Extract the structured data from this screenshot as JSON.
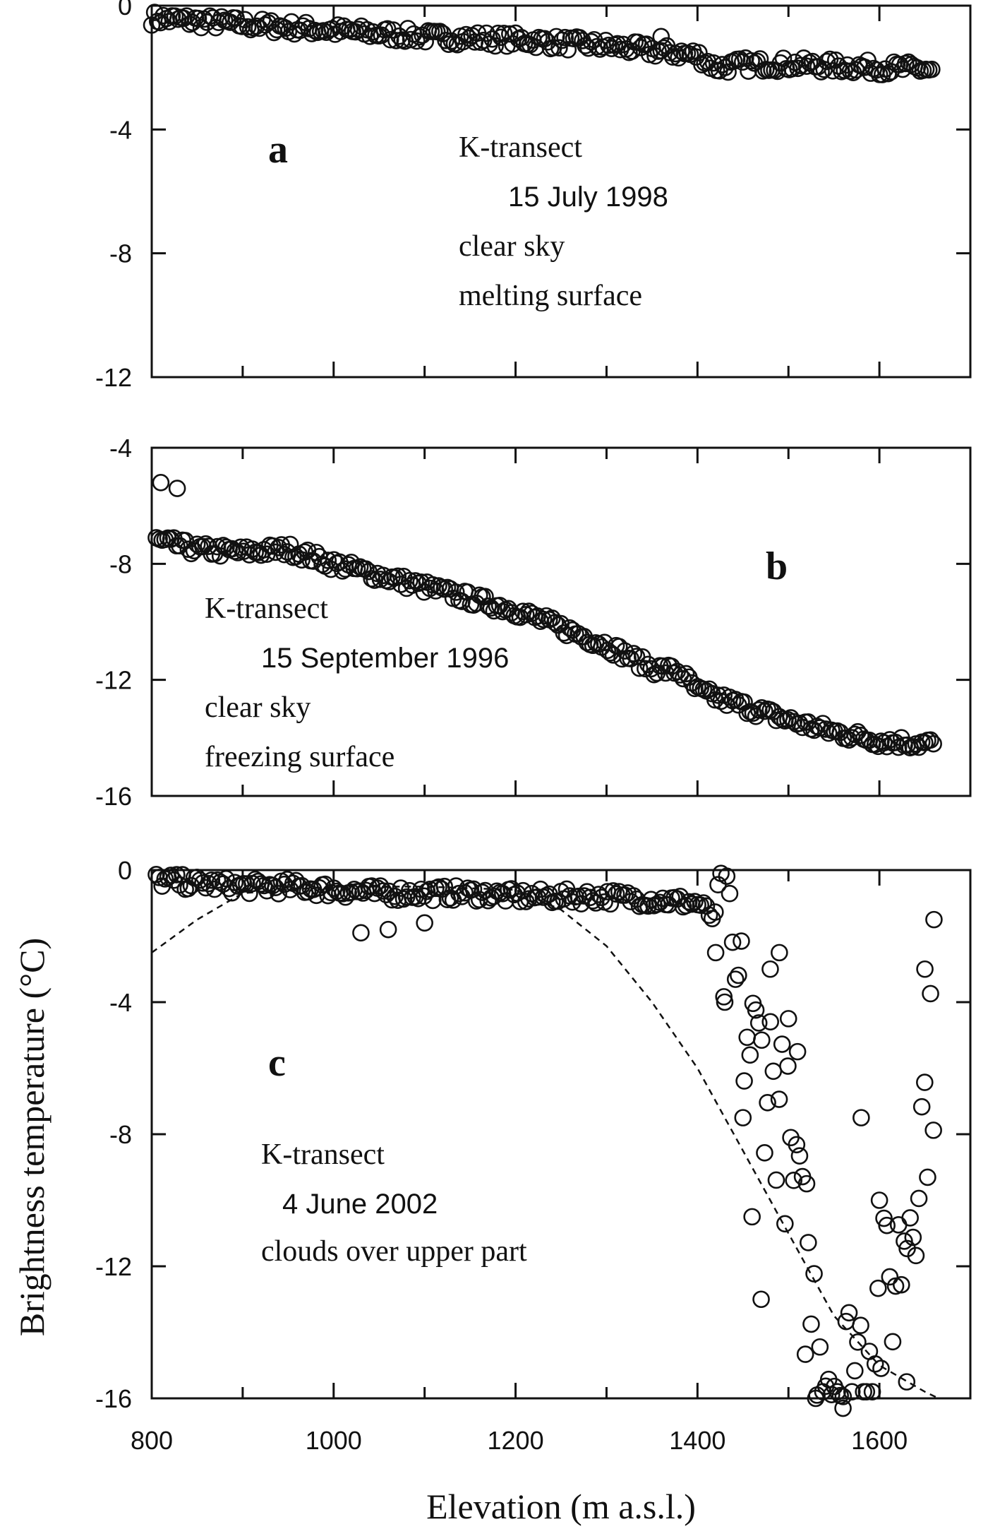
{
  "chart_data": [
    {
      "type": "scatter",
      "panel": "a",
      "annotation": [
        "K-transect",
        "15 July 1998",
        "clear sky",
        "melting surface"
      ],
      "xlim": [
        800,
        1700
      ],
      "ylim": [
        -12,
        0
      ],
      "yticks": [
        "0",
        "-4",
        "-8",
        "-12"
      ],
      "ytick_values": [
        0,
        -4,
        -8,
        -12
      ],
      "series": [
        {
          "x": [
            800,
            850,
            900,
            950,
            1000,
            1050,
            1100,
            1150,
            1200,
            1250,
            1300,
            1350,
            1400,
            1420,
            1450,
            1500,
            1550,
            1600,
            1650,
            1660
          ],
          "y": [
            -0.4,
            -0.5,
            -0.6,
            -0.7,
            -0.8,
            -0.9,
            -1.0,
            -1.05,
            -1.1,
            -1.2,
            -1.3,
            -1.45,
            -1.6,
            -2.0,
            -1.9,
            -1.9,
            -1.95,
            -2.0,
            -2.05,
            -2.1
          ]
        }
      ],
      "outliers": [
        {
          "x": 1360,
          "y": -1.0
        }
      ]
    },
    {
      "type": "scatter",
      "panel": "b",
      "annotation": [
        "K-transect",
        "15 September 1996",
        "clear sky",
        "freezing surface"
      ],
      "xlim": [
        800,
        1700
      ],
      "ylim": [
        -16,
        -4
      ],
      "yticks": [
        "-4",
        "-8",
        "-12",
        "-16"
      ],
      "ytick_values": [
        -4,
        -8,
        -12,
        -16
      ],
      "series": [
        {
          "x": [
            805,
            850,
            900,
            950,
            1000,
            1050,
            1100,
            1150,
            1200,
            1250,
            1300,
            1350,
            1380,
            1400,
            1450,
            1500,
            1550,
            1600,
            1650,
            1660
          ],
          "y": [
            -7.2,
            -7.5,
            -7.6,
            -7.5,
            -8.0,
            -8.4,
            -8.8,
            -9.2,
            -9.6,
            -10.2,
            -10.8,
            -11.6,
            -11.7,
            -12.4,
            -12.9,
            -13.4,
            -13.8,
            -14.1,
            -14.2,
            -14.2
          ]
        }
      ],
      "outliers": [
        {
          "x": 810,
          "y": -5.2
        },
        {
          "x": 828,
          "y": -5.4
        }
      ]
    },
    {
      "type": "scatter",
      "panel": "c",
      "annotation": [
        "K-transect",
        "4 June 2002",
        "clouds over upper part"
      ],
      "xlim": [
        800,
        1700
      ],
      "ylim": [
        -16,
        0
      ],
      "yticks": [
        "0",
        "-4",
        "-8",
        "-12",
        "-16"
      ],
      "ytick_values": [
        0,
        -4,
        -8,
        -12,
        -16
      ],
      "series": [
        {
          "x": [
            805,
            850,
            900,
            950,
            1000,
            1050,
            1100,
            1150,
            1200,
            1250,
            1300,
            1350,
            1400,
            1420,
            1440,
            1460,
            1480,
            1500,
            1520,
            1540,
            1560,
            1580,
            1600,
            1620,
            1640,
            1660
          ],
          "y": [
            -0.3,
            -0.4,
            -0.5,
            -0.5,
            -0.6,
            -0.7,
            -0.7,
            -0.7,
            -0.8,
            -0.8,
            -0.8,
            -0.9,
            -1.0,
            -1.5,
            -3.5,
            -5.5,
            -6.0,
            -8.5,
            -12.5,
            -14.5,
            -15.5,
            -14.5,
            -13.5,
            -12.0,
            -9.0,
            -5.5
          ]
        }
      ],
      "scatter_spread": [
        {
          "x": 1030,
          "y": -1.9
        },
        {
          "x": 1060,
          "y": -1.8
        },
        {
          "x": 1100,
          "y": -1.6
        },
        {
          "x": 1420,
          "y": -2.5
        },
        {
          "x": 1430,
          "y": -4.0
        },
        {
          "x": 1450,
          "y": -7.5
        },
        {
          "x": 1460,
          "y": -10.5
        },
        {
          "x": 1470,
          "y": -13.0
        },
        {
          "x": 1480,
          "y": -3.0
        },
        {
          "x": 1490,
          "y": -2.5
        },
        {
          "x": 1500,
          "y": -4.5
        },
        {
          "x": 1510,
          "y": -5.5
        },
        {
          "x": 1520,
          "y": -9.5
        },
        {
          "x": 1530,
          "y": -16.0
        },
        {
          "x": 1560,
          "y": -16.3
        },
        {
          "x": 1580,
          "y": -7.5
        },
        {
          "x": 1600,
          "y": -10.0
        },
        {
          "x": 1630,
          "y": -15.5
        },
        {
          "x": 1650,
          "y": -3.0
        },
        {
          "x": 1660,
          "y": -1.5
        }
      ],
      "fit_line": {
        "x": [
          800,
          850,
          900,
          1000,
          1100,
          1200,
          1250,
          1300,
          1350,
          1400,
          1450,
          1500,
          1550,
          1600,
          1650,
          1665
        ],
        "y": [
          -2.5,
          -1.5,
          -0.7,
          -0.5,
          -0.5,
          -0.6,
          -1.2,
          -2.3,
          -4.0,
          -6.0,
          -8.5,
          -11.0,
          -13.5,
          -15.0,
          -15.8,
          -16.0
        ]
      }
    }
  ],
  "xticks": [
    "800",
    "1000",
    "1200",
    "1400",
    "1600"
  ],
  "xtick_values": [
    800,
    1000,
    1200,
    1400,
    1600
  ],
  "xlabel": "Elevation (m a.s.l.)",
  "ylabel": "Brightness temperature (°C)"
}
